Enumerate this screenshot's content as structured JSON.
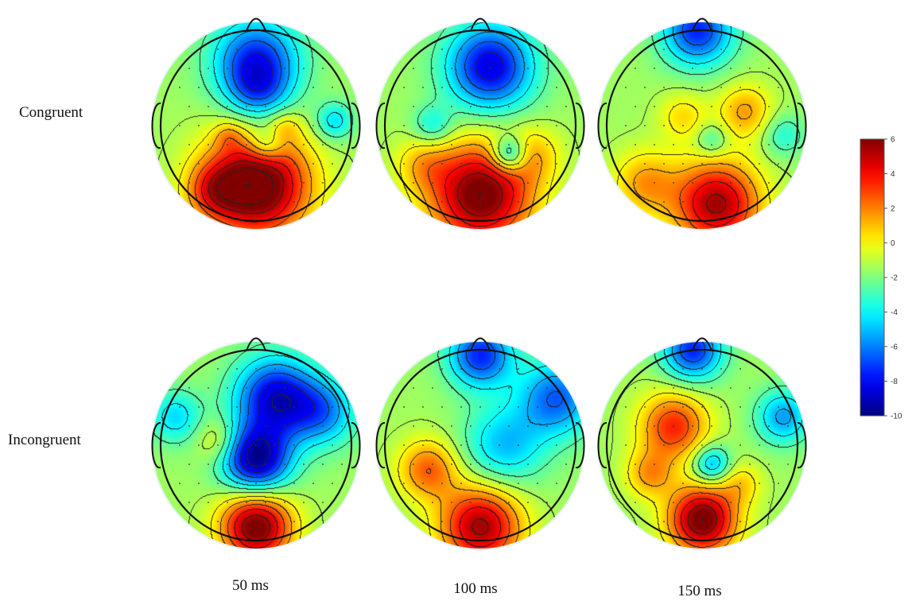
{
  "rows": [
    {
      "label": "Congruent"
    },
    {
      "label": "Incongruent"
    }
  ],
  "columns": [
    {
      "label": "50 ms"
    },
    {
      "label": "100 ms"
    },
    {
      "label": "150 ms"
    }
  ],
  "colorbar": {
    "ticks": [
      "6",
      "4",
      "2",
      "0",
      "-2",
      "-4",
      "-6",
      "-8",
      "-10"
    ],
    "range": [
      -10,
      6
    ],
    "colormap": "jet"
  },
  "colors": {
    "head_outline": "#111111",
    "contour": "#222222",
    "electrode": "#333333"
  },
  "maps": [
    {
      "row": "Congruent",
      "time": "50 ms",
      "sources": [
        {
          "fx": 0.0,
          "fy": -0.68,
          "amp": -6,
          "s": 0.32
        },
        {
          "fx": 0.02,
          "fy": -0.35,
          "amp": -3,
          "s": 0.22
        },
        {
          "fx": 0.0,
          "fy": 0.62,
          "amp": 9,
          "s": 0.38
        },
        {
          "fx": -0.45,
          "fy": 0.68,
          "amp": 3,
          "s": 0.2
        },
        {
          "fx": 0.1,
          "fy": 0.2,
          "amp": -3,
          "s": 0.14
        },
        {
          "fx": 0.82,
          "fy": -0.05,
          "amp": -3,
          "s": 0.14
        },
        {
          "fx": -0.3,
          "fy": 0.1,
          "amp": 1.5,
          "s": 0.1
        },
        {
          "fx": 0.3,
          "fy": 0.02,
          "amp": 1.5,
          "s": 0.12
        }
      ]
    },
    {
      "row": "Congruent",
      "time": "100 ms",
      "sources": [
        {
          "fx": 0.1,
          "fy": -0.62,
          "amp": -7,
          "s": 0.32
        },
        {
          "fx": 0.3,
          "fy": 0.3,
          "amp": -5,
          "s": 0.13
        },
        {
          "fx": -0.5,
          "fy": 0.0,
          "amp": -2.5,
          "s": 0.15
        },
        {
          "fx": 0.0,
          "fy": 0.72,
          "amp": 8,
          "s": 0.38
        },
        {
          "fx": 0.55,
          "fy": 0.3,
          "amp": 2,
          "s": 0.2
        },
        {
          "fx": -0.6,
          "fy": 0.4,
          "amp": 2,
          "s": 0.2
        }
      ]
    },
    {
      "row": "Congruent",
      "time": "150 ms",
      "sources": [
        {
          "fx": -0.05,
          "fy": -1.0,
          "amp": -6,
          "s": 0.26
        },
        {
          "fx": 0.15,
          "fy": 0.82,
          "amp": 7,
          "s": 0.32
        },
        {
          "fx": -0.6,
          "fy": 0.6,
          "amp": 3,
          "s": 0.24
        },
        {
          "fx": 0.45,
          "fy": -0.15,
          "amp": 3,
          "s": 0.2
        },
        {
          "fx": -0.2,
          "fy": -0.1,
          "amp": 2,
          "s": 0.18
        },
        {
          "fx": 0.1,
          "fy": 0.15,
          "amp": -2,
          "s": 0.12
        },
        {
          "fx": 0.85,
          "fy": 0.1,
          "amp": -2,
          "s": 0.16
        }
      ]
    },
    {
      "row": "Incongruent",
      "time": "50 ms",
      "sources": [
        {
          "fx": 0.0,
          "fy": 0.15,
          "amp": -8,
          "s": 0.25
        },
        {
          "fx": 0.2,
          "fy": -0.5,
          "amp": -7,
          "s": 0.3
        },
        {
          "fx": 0.7,
          "fy": -0.35,
          "amp": -4,
          "s": 0.25
        },
        {
          "fx": -0.85,
          "fy": -0.3,
          "amp": -3,
          "s": 0.2
        },
        {
          "fx": 0.0,
          "fy": 0.85,
          "amp": 8,
          "s": 0.26
        },
        {
          "fx": -0.4,
          "fy": -0.05,
          "amp": 2,
          "s": 0.16
        }
      ]
    },
    {
      "row": "Incongruent",
      "time": "100 ms",
      "sources": [
        {
          "fx": 0.0,
          "fy": -0.95,
          "amp": -6,
          "s": 0.24
        },
        {
          "fx": 0.8,
          "fy": -0.5,
          "amp": -5,
          "s": 0.28
        },
        {
          "fx": 0.25,
          "fy": 0.0,
          "amp": -3.5,
          "s": 0.3
        },
        {
          "fx": 0.0,
          "fy": 0.85,
          "amp": 7,
          "s": 0.3
        },
        {
          "fx": -0.55,
          "fy": 0.25,
          "amp": 4,
          "s": 0.22
        }
      ]
    },
    {
      "row": "Incongruent",
      "time": "150 ms",
      "sources": [
        {
          "fx": -0.3,
          "fy": -0.2,
          "amp": 5,
          "s": 0.25
        },
        {
          "fx": 0.0,
          "fy": 0.78,
          "amp": 8,
          "s": 0.25
        },
        {
          "fx": 0.1,
          "fy": 0.2,
          "amp": -4,
          "s": 0.14
        },
        {
          "fx": -0.1,
          "fy": -1.0,
          "amp": -6,
          "s": 0.22
        },
        {
          "fx": 0.85,
          "fy": -0.3,
          "amp": -4,
          "s": 0.2
        },
        {
          "fx": -0.55,
          "fy": 0.3,
          "amp": 3,
          "s": 0.18
        },
        {
          "fx": 0.4,
          "fy": 0.4,
          "amp": 2,
          "s": 0.16
        }
      ]
    }
  ]
}
